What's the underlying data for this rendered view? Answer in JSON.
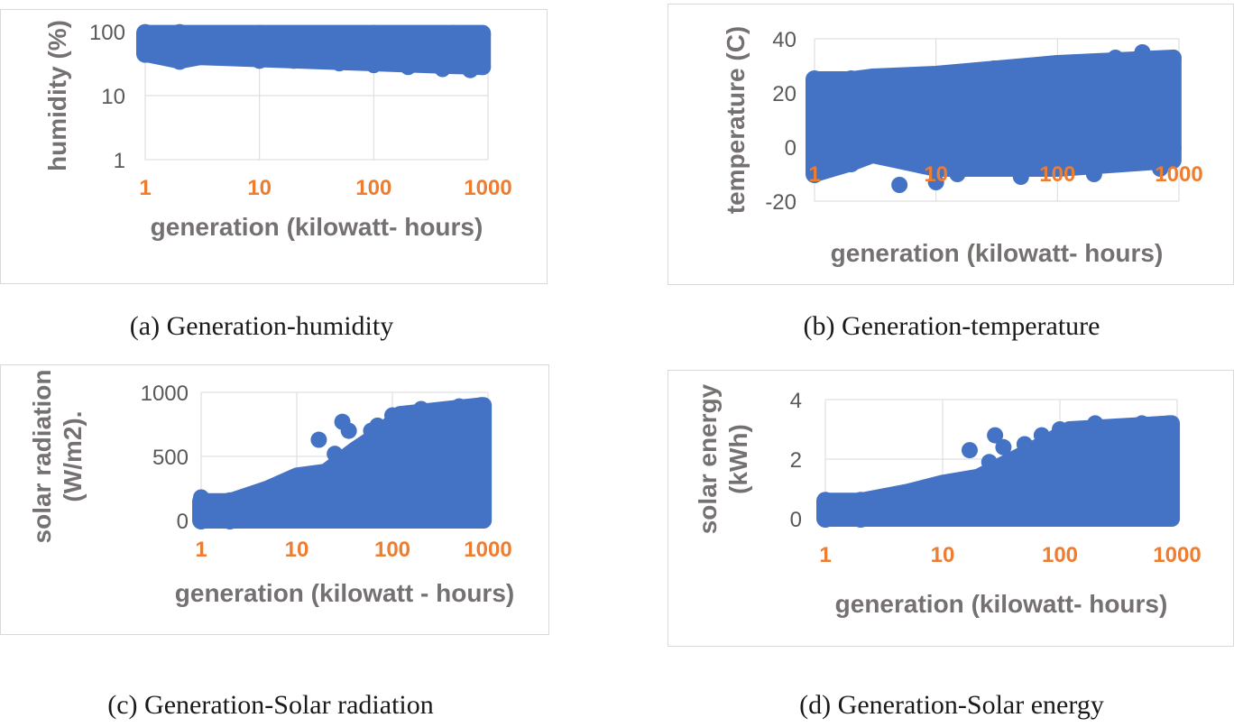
{
  "colors": {
    "marker": "#4472c4",
    "xtick": "#ed7d31",
    "label": "#767171",
    "ytick": "#595959",
    "grid": "#d9d9d9"
  },
  "chart_data": [
    {
      "id": "a",
      "type": "scatter",
      "caption": "(a) Generation-humidity",
      "xlabel": "generation (kilowatt- hours)",
      "ylabel": [
        "humidity (%)"
      ],
      "xscale": "log",
      "yscale": "log",
      "xlim": [
        1,
        1000
      ],
      "ylim": [
        1,
        100
      ],
      "xticks": [
        "1",
        "10",
        "100",
        "1000"
      ],
      "yticks": [
        {
          "v": 1,
          "label": "1"
        },
        {
          "v": 10,
          "label": "10"
        },
        {
          "v": 100,
          "label": "100"
        }
      ],
      "points": [
        [
          1,
          45
        ],
        [
          1,
          95
        ],
        [
          2,
          35
        ],
        [
          2,
          95
        ],
        [
          5,
          40
        ],
        [
          10,
          35
        ],
        [
          20,
          35
        ],
        [
          50,
          32
        ],
        [
          100,
          30
        ],
        [
          200,
          28
        ],
        [
          400,
          26
        ],
        [
          700,
          25
        ],
        [
          900,
          28
        ],
        [
          900,
          90
        ],
        [
          500,
          95
        ],
        [
          100,
          95
        ],
        [
          10,
          95
        ],
        [
          3,
          90
        ]
      ],
      "band": {
        "x": [
          1,
          1,
          2,
          2,
          3,
          900
        ],
        "ymin": [
          45,
          45,
          35,
          35,
          40,
          28
        ],
        "ymax": [
          95,
          95,
          95,
          95,
          95,
          95
        ]
      }
    },
    {
      "id": "b",
      "type": "scatter",
      "caption": "(b) Generation-temperature",
      "xlabel": "generation (kilowatt- hours)",
      "ylabel": [
        "temperature (C)"
      ],
      "xscale": "log",
      "yscale": "linear",
      "xlim": [
        1,
        1000
      ],
      "ylim": [
        -20,
        40
      ],
      "xticks": [
        "1",
        "10",
        "100",
        "1000"
      ],
      "yticks": [
        {
          "v": -20,
          "label": "-20"
        },
        {
          "v": 0,
          "label": "0"
        },
        {
          "v": 20,
          "label": "20"
        },
        {
          "v": 40,
          "label": "40"
        }
      ],
      "points": [
        [
          1,
          -10
        ],
        [
          1,
          25
        ],
        [
          2,
          -6
        ],
        [
          2,
          25
        ],
        [
          3,
          26
        ],
        [
          5,
          -14
        ],
        [
          10,
          -13
        ],
        [
          15,
          -10
        ],
        [
          20,
          28
        ],
        [
          30,
          29
        ],
        [
          50,
          -11
        ],
        [
          80,
          -8
        ],
        [
          100,
          31
        ],
        [
          200,
          -10
        ],
        [
          300,
          33
        ],
        [
          500,
          35
        ],
        [
          700,
          -8
        ],
        [
          900,
          33
        ],
        [
          900,
          0
        ]
      ],
      "band": {
        "x": [
          1,
          1,
          2,
          2,
          3,
          10,
          100,
          900
        ],
        "ymin": [
          -10,
          -10,
          -6,
          -6,
          -3,
          -8,
          -8,
          -5
        ],
        "ymax": [
          25,
          25,
          25,
          25,
          26,
          27,
          31,
          33
        ]
      }
    },
    {
      "id": "c",
      "type": "scatter",
      "caption": "(c) Generation-Solar radiation",
      "xlabel": "generation (kilowatt - hours)",
      "ylabel": [
        "solar radiation",
        "(W/m2)."
      ],
      "xscale": "log",
      "yscale": "linear",
      "xlim": [
        1,
        1000
      ],
      "ylim": [
        0,
        1000
      ],
      "xticks": [
        "1",
        "10",
        "100",
        "1000"
      ],
      "yticks": [
        {
          "v": 0,
          "label": "0"
        },
        {
          "v": 500,
          "label": "500"
        },
        {
          "v": 1000,
          "label": "1000"
        }
      ],
      "points": [
        [
          1,
          180
        ],
        [
          1,
          0
        ],
        [
          17,
          630
        ],
        [
          30,
          770
        ],
        [
          35,
          700
        ],
        [
          25,
          520
        ],
        [
          60,
          700
        ],
        [
          70,
          740
        ],
        [
          100,
          820
        ],
        [
          200,
          870
        ],
        [
          500,
          890
        ],
        [
          850,
          900
        ],
        [
          850,
          0
        ]
      ],
      "band": {
        "x": [
          1,
          1,
          2,
          5,
          10,
          20,
          40,
          80,
          120,
          900
        ],
        "ymin": [
          0,
          0,
          0,
          0,
          0,
          0,
          0,
          0,
          0,
          0
        ],
        "ymax": [
          150,
          150,
          150,
          250,
          350,
          380,
          550,
          700,
          830,
          900
        ]
      }
    },
    {
      "id": "d",
      "type": "scatter",
      "caption": "(d) Generation-Solar energy",
      "xlabel": "generation (kilowatt- hours)",
      "ylabel": [
        "solar energy",
        "(kWh)"
      ],
      "xscale": "log",
      "yscale": "linear",
      "xlim": [
        1,
        1000
      ],
      "ylim": [
        0,
        4
      ],
      "xticks": [
        "1",
        "10",
        "100",
        "1000"
      ],
      "yticks": [
        {
          "v": 0,
          "label": "0"
        },
        {
          "v": 2,
          "label": "2"
        },
        {
          "v": 4,
          "label": "4"
        }
      ],
      "points": [
        [
          1,
          0.6
        ],
        [
          1,
          0.0
        ],
        [
          17,
          2.3
        ],
        [
          28,
          2.8
        ],
        [
          33,
          2.4
        ],
        [
          25,
          1.9
        ],
        [
          50,
          2.5
        ],
        [
          70,
          2.8
        ],
        [
          100,
          3.0
        ],
        [
          200,
          3.2
        ],
        [
          500,
          3.2
        ],
        [
          850,
          3.2
        ],
        [
          850,
          0
        ]
      ],
      "band": {
        "x": [
          1,
          1,
          2,
          5,
          10,
          20,
          40,
          80,
          120,
          900
        ],
        "ymin": [
          0,
          0,
          0,
          0,
          0,
          0,
          0,
          0,
          0,
          0
        ],
        "ymax": [
          0.6,
          0.6,
          0.6,
          0.9,
          1.2,
          1.4,
          2.0,
          2.6,
          3.0,
          3.2
        ]
      }
    }
  ]
}
